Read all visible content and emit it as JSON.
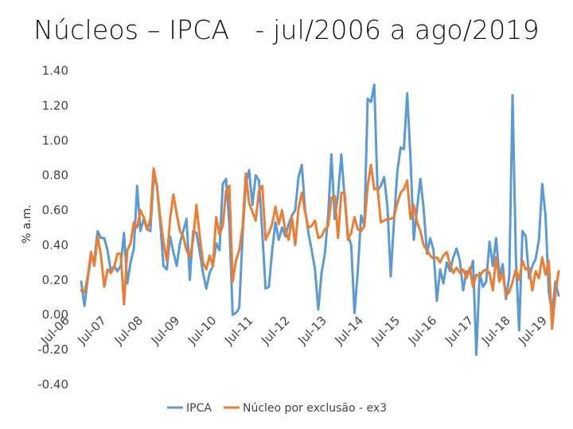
{
  "chart_data": {
    "type": "line",
    "title": "Núcleos – IPCA   - jul/2006 a ago/2019",
    "ylabel": "% a.m.",
    "xlabel": "",
    "ylim": [
      -0.4,
      1.4
    ],
    "yticks": [
      "1.40",
      "1.20",
      "1.00",
      "0.80",
      "0.60",
      "0.40",
      "0.20",
      "0.00",
      "-0.20",
      "-0.40"
    ],
    "xtick_labels": [
      "Jul-06",
      "Jul-07",
      "Jul-08",
      "Jul-09",
      "Jul-10",
      "Jul-11",
      "Jul-12",
      "Jul-13",
      "Jul-14",
      "Jul-15",
      "Jul-16",
      "Jul-17",
      "Jul-18",
      "Jul-19"
    ],
    "legend_position": "bottom",
    "colors": {
      "IPCA": "#5b9bd5",
      "Nucleo": "#ed7d31"
    },
    "series": [
      {
        "name": "IPCA",
        "values": [
          0.19,
          0.05,
          0.21,
          0.33,
          0.31,
          0.48,
          0.44,
          0.44,
          0.37,
          0.25,
          0.28,
          0.25,
          0.28,
          0.47,
          0.18,
          0.3,
          0.38,
          0.74,
          0.48,
          0.55,
          0.49,
          0.48,
          0.79,
          0.74,
          0.53,
          0.28,
          0.26,
          0.45,
          0.36,
          0.28,
          0.41,
          0.48,
          0.55,
          0.2,
          0.48,
          0.47,
          0.36,
          0.24,
          0.15,
          0.24,
          0.28,
          0.41,
          0.37,
          0.75,
          0.78,
          0.52,
          0.0,
          0.01,
          0.04,
          0.45,
          0.75,
          0.83,
          0.63,
          0.8,
          0.77,
          0.47,
          0.15,
          0.16,
          0.37,
          0.53,
          0.43,
          0.5,
          0.45,
          0.52,
          0.57,
          0.6,
          0.79,
          0.86,
          0.6,
          0.47,
          0.37,
          0.26,
          0.03,
          0.24,
          0.35,
          0.57,
          0.92,
          0.55,
          0.69,
          0.92,
          0.67,
          0.46,
          0.4,
          0.01,
          0.25,
          0.57,
          0.51,
          1.24,
          1.22,
          1.32,
          0.71,
          0.74,
          0.79,
          0.62,
          0.22,
          0.54,
          0.82,
          0.96,
          0.95,
          1.27,
          0.9,
          0.43,
          0.61,
          0.78,
          0.61,
          0.35,
          0.44,
          0.37,
          0.08,
          0.26,
          0.18,
          0.3,
          0.25,
          0.33,
          0.38,
          0.31,
          0.14,
          0.25,
          0.24,
          0.31,
          -0.23,
          0.24,
          0.16,
          0.19,
          0.42,
          0.28,
          0.44,
          0.22,
          0.29,
          0.09,
          0.22,
          1.26,
          0.33,
          -0.09,
          0.48,
          0.45,
          0.21,
          0.28,
          0.32,
          0.43,
          0.75,
          0.57,
          0.13,
          0.01,
          0.19,
          0.11
        ]
      },
      {
        "name": "Núcleo por exclusão - ex3",
        "values": [
          0.14,
          0.13,
          0.22,
          0.36,
          0.28,
          0.45,
          0.34,
          0.16,
          0.26,
          0.24,
          0.27,
          0.35,
          0.35,
          0.06,
          0.37,
          0.41,
          0.53,
          0.5,
          0.6,
          0.56,
          0.49,
          0.55,
          0.84,
          0.74,
          0.56,
          0.42,
          0.31,
          0.55,
          0.69,
          0.58,
          0.48,
          0.45,
          0.37,
          0.33,
          0.43,
          0.63,
          0.45,
          0.3,
          0.26,
          0.34,
          0.28,
          0.56,
          0.46,
          0.51,
          0.71,
          0.74,
          0.19,
          0.31,
          0.37,
          0.5,
          0.81,
          0.64,
          0.59,
          0.54,
          0.71,
          0.74,
          0.43,
          0.47,
          0.52,
          0.62,
          0.52,
          0.6,
          0.48,
          0.43,
          0.56,
          0.4,
          0.61,
          0.7,
          0.59,
          0.5,
          0.51,
          0.54,
          0.44,
          0.45,
          0.49,
          0.51,
          0.67,
          0.68,
          0.44,
          0.7,
          0.7,
          0.43,
          0.47,
          0.56,
          0.49,
          0.48,
          0.51,
          0.74,
          0.86,
          0.72,
          0.73,
          0.53,
          0.54,
          0.55,
          0.55,
          0.56,
          0.64,
          0.7,
          0.72,
          0.77,
          0.55,
          0.63,
          0.53,
          0.48,
          0.4,
          0.37,
          0.34,
          0.32,
          0.33,
          0.3,
          0.34,
          0.36,
          0.29,
          0.24,
          0.27,
          0.24,
          0.26,
          0.21,
          0.27,
          0.16,
          0.23,
          0.22,
          0.25,
          0.26,
          0.24,
          0.14,
          0.33,
          0.19,
          0.24,
          0.11,
          0.13,
          0.19,
          0.26,
          0.2,
          0.31,
          0.26,
          0.27,
          0.14,
          0.25,
          0.21,
          0.33,
          0.23,
          0.31,
          -0.08,
          0.12,
          0.25
        ]
      }
    ]
  }
}
